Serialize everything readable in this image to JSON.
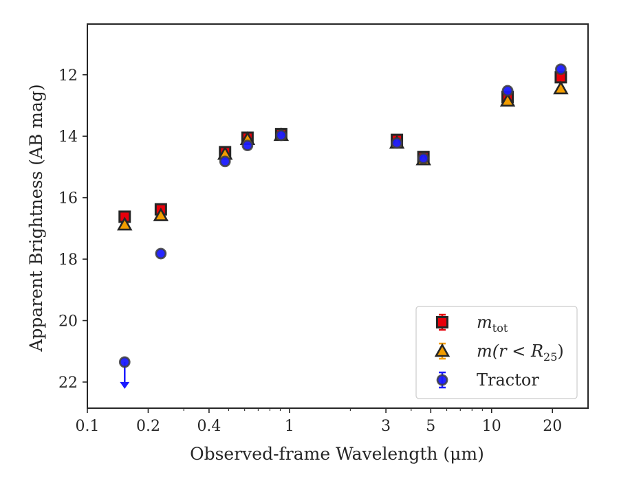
{
  "chart_data": {
    "type": "scatter",
    "xlabel": "Observed-frame Wavelength (μm)",
    "ylabel": "Apparent Brightness (AB mag)",
    "x_scale": "log",
    "xlim": [
      0.1,
      30
    ],
    "ylim": [
      22.85,
      10.35
    ],
    "y_inverted": true,
    "x_ticks": [
      0.1,
      0.2,
      0.4,
      1,
      3,
      5,
      10,
      20
    ],
    "x_tick_labels": [
      "0.1",
      "0.2",
      "0.4",
      "1",
      "3",
      "5",
      "10",
      "20"
    ],
    "y_ticks": [
      12,
      14,
      16,
      18,
      20,
      22
    ],
    "y_tick_labels": [
      "12",
      "14",
      "16",
      "18",
      "20",
      "22"
    ],
    "grid": false,
    "legend_position": "bottom-right",
    "series": [
      {
        "name": "m_tot",
        "legend_main": "m",
        "legend_sub": "tot",
        "marker": "square",
        "color": "#e8000b",
        "edge": "#262626",
        "points": [
          {
            "x": 0.153,
            "y": 16.62,
            "err": 0.1
          },
          {
            "x": 0.231,
            "y": 16.38,
            "err": 0.08
          },
          {
            "x": 0.48,
            "y": 14.52,
            "err": 0.06
          },
          {
            "x": 0.62,
            "y": 14.05,
            "err": 0.12
          },
          {
            "x": 0.91,
            "y": 13.93,
            "err": 0.06
          },
          {
            "x": 3.4,
            "y": 14.12,
            "err": 0.1
          },
          {
            "x": 4.6,
            "y": 14.68,
            "err": 0.06
          },
          {
            "x": 12.0,
            "y": 12.72,
            "err": 0.17
          },
          {
            "x": 22.0,
            "y": 12.08,
            "err": 0.1
          }
        ]
      },
      {
        "name": "m(r<R25)",
        "legend_main": "m(r < R",
        "legend_sub": "25",
        "legend_tail": ")",
        "marker": "triangle",
        "color": "#f29d00",
        "edge": "#262626",
        "points": [
          {
            "x": 0.153,
            "y": 16.88
          },
          {
            "x": 0.231,
            "y": 16.58
          },
          {
            "x": 0.48,
            "y": 14.58
          },
          {
            "x": 0.62,
            "y": 14.1
          },
          {
            "x": 0.91,
            "y": 13.97
          },
          {
            "x": 3.4,
            "y": 14.22
          },
          {
            "x": 4.6,
            "y": 14.76
          },
          {
            "x": 12.0,
            "y": 12.85
          },
          {
            "x": 22.0,
            "y": 12.45
          }
        ]
      },
      {
        "name": "Tractor",
        "legend_main": "Tractor",
        "marker": "circle",
        "color": "#1a1aff",
        "edge": "#404040",
        "points": [
          {
            "x": 0.153,
            "y": 21.35,
            "upper_limit": true
          },
          {
            "x": 0.231,
            "y": 17.82
          },
          {
            "x": 0.48,
            "y": 14.82
          },
          {
            "x": 0.62,
            "y": 14.3
          },
          {
            "x": 0.91,
            "y": 13.97
          },
          {
            "x": 3.4,
            "y": 14.22
          },
          {
            "x": 4.6,
            "y": 14.72
          },
          {
            "x": 12.0,
            "y": 12.52
          },
          {
            "x": 22.0,
            "y": 11.82
          }
        ]
      }
    ]
  }
}
